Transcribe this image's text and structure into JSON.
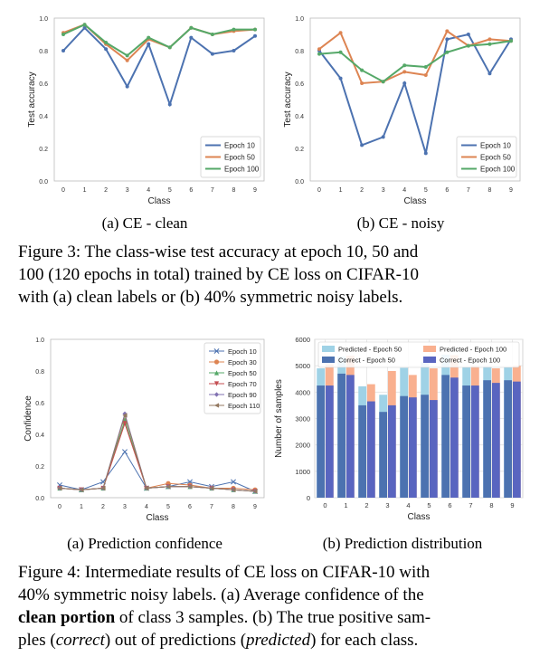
{
  "fig3": {
    "panel_a_caption": "(a) CE - clean",
    "panel_b_caption": "(b) CE - noisy",
    "caption_lines": [
      "Figure 3: The class-wise test accuracy at epoch 10, 50 and",
      "100 (120 epochs in total) trained by CE loss on CIFAR-10",
      "with (a) clean labels or (b) 40% symmetric noisy labels."
    ]
  },
  "fig4": {
    "panel_a_caption": "(a) Prediction confidence",
    "panel_b_caption": "(b) Prediction distribution",
    "caption": {
      "line1": "Figure 4: Intermediate results of CE loss on CIFAR-10 with",
      "line2": "40% symmetric noisy labels. (a) Average confidence of the",
      "line3_bold": "clean portion",
      "line3_rest": " of class 3 samples. (b) The true positive sam-",
      "line4_pre": "ples (",
      "line4_em1": "correct",
      "line4_mid": ") out of predictions (",
      "line4_em2": "predicted",
      "line4_post": ") for each class."
    }
  },
  "colors": {
    "epoch10": "#4c72b0",
    "epoch50": "#dd8452",
    "epoch100": "#55a868",
    "conf10": "#4c72b0",
    "conf30": "#dd8452",
    "conf50": "#55a868",
    "conf70": "#c44e52",
    "conf90": "#8172b2",
    "conf110": "#937860",
    "pred50": "#9fd2e6",
    "pred100": "#f9b08f",
    "corr50": "#4c72b0",
    "corr100": "#5965c0"
  },
  "chart_data": [
    {
      "type": "line",
      "xlabel": "Class",
      "ylabel": "Test accuracy",
      "x": [
        0,
        1,
        2,
        3,
        4,
        5,
        6,
        7,
        8,
        9
      ],
      "xticks": [
        "0",
        "1",
        "2",
        "3",
        "4",
        "5",
        "6",
        "7",
        "8",
        "9"
      ],
      "yticks": [
        "0.0",
        "0.2",
        "0.4",
        "0.6",
        "0.8",
        "1.0"
      ],
      "ylim": [
        0,
        1.0
      ],
      "legend_position": "lower-right",
      "series": [
        {
          "name": "Epoch 10",
          "values": [
            0.8,
            0.94,
            0.81,
            0.58,
            0.84,
            0.47,
            0.88,
            0.78,
            0.8,
            0.89
          ]
        },
        {
          "name": "Epoch 50",
          "values": [
            0.91,
            0.96,
            0.84,
            0.74,
            0.87,
            0.82,
            0.94,
            0.9,
            0.92,
            0.93
          ]
        },
        {
          "name": "Epoch 100",
          "values": [
            0.9,
            0.96,
            0.85,
            0.77,
            0.88,
            0.82,
            0.94,
            0.9,
            0.93,
            0.93
          ]
        }
      ]
    },
    {
      "type": "line",
      "xlabel": "Class",
      "ylabel": "Test accuracy",
      "x": [
        0,
        1,
        2,
        3,
        4,
        5,
        6,
        7,
        8,
        9
      ],
      "xticks": [
        "0",
        "1",
        "2",
        "3",
        "4",
        "5",
        "6",
        "7",
        "8",
        "9"
      ],
      "yticks": [
        "0.0",
        "0.2",
        "0.4",
        "0.6",
        "0.8",
        "1.0"
      ],
      "ylim": [
        0,
        1.0
      ],
      "legend_position": "lower-right",
      "series": [
        {
          "name": "Epoch 10",
          "values": [
            0.8,
            0.63,
            0.22,
            0.27,
            0.6,
            0.17,
            0.87,
            0.9,
            0.66,
            0.87
          ]
        },
        {
          "name": "Epoch 50",
          "values": [
            0.81,
            0.91,
            0.6,
            0.61,
            0.67,
            0.65,
            0.92,
            0.83,
            0.87,
            0.86
          ]
        },
        {
          "name": "Epoch 100",
          "values": [
            0.78,
            0.79,
            0.68,
            0.61,
            0.71,
            0.7,
            0.79,
            0.83,
            0.84,
            0.86
          ]
        }
      ]
    },
    {
      "type": "line",
      "xlabel": "Class",
      "ylabel": "Confidence",
      "x": [
        0,
        1,
        2,
        3,
        4,
        5,
        6,
        7,
        8,
        9
      ],
      "xticks": [
        "0",
        "1",
        "2",
        "3",
        "4",
        "5",
        "6",
        "7",
        "8",
        "9"
      ],
      "yticks": [
        "0.0",
        "0.2",
        "0.4",
        "0.6",
        "0.8",
        "1.0"
      ],
      "ylim": [
        0,
        1.0
      ],
      "legend_position": "top-right",
      "series": [
        {
          "name": "Epoch 10",
          "marker": "x",
          "values": [
            0.08,
            0.05,
            0.1,
            0.29,
            0.06,
            0.07,
            0.1,
            0.07,
            0.1,
            0.04
          ]
        },
        {
          "name": "Epoch 30",
          "marker": "o",
          "values": [
            0.06,
            0.05,
            0.06,
            0.47,
            0.06,
            0.09,
            0.08,
            0.06,
            0.06,
            0.05
          ]
        },
        {
          "name": "Epoch 50",
          "marker": "^",
          "values": [
            0.06,
            0.05,
            0.06,
            0.49,
            0.06,
            0.07,
            0.07,
            0.06,
            0.05,
            0.04
          ]
        },
        {
          "name": "Epoch 70",
          "marker": "v",
          "values": [
            0.06,
            0.05,
            0.06,
            0.47,
            0.06,
            0.07,
            0.07,
            0.06,
            0.05,
            0.04
          ]
        },
        {
          "name": "Epoch 90",
          "marker": "D",
          "values": [
            0.06,
            0.05,
            0.06,
            0.53,
            0.06,
            0.07,
            0.07,
            0.06,
            0.05,
            0.04
          ]
        },
        {
          "name": "Epoch 110",
          "marker": "<",
          "values": [
            0.06,
            0.05,
            0.06,
            0.52,
            0.06,
            0.07,
            0.07,
            0.06,
            0.05,
            0.04
          ]
        }
      ]
    },
    {
      "type": "bar",
      "xlabel": "Class",
      "ylabel": "Number of samples",
      "categories": [
        "0",
        "1",
        "2",
        "3",
        "4",
        "5",
        "6",
        "7",
        "8",
        "9"
      ],
      "yticks": [
        "0",
        "1000",
        "2000",
        "3000",
        "4000",
        "5000",
        "6000"
      ],
      "ylim": [
        0,
        6000
      ],
      "legend_position": "top",
      "grid": true,
      "series": [
        {
          "name": "Predicted - Epoch 50",
          "values": [
            4900,
            5350,
            4220,
            3900,
            4920,
            5150,
            5420,
            4950,
            4980,
            4950
          ]
        },
        {
          "name": "Predicted - Epoch 100",
          "values": [
            5050,
            5380,
            4300,
            4800,
            4650,
            4900,
            5400,
            5000,
            4900,
            5000
          ]
        },
        {
          "name": "Correct - Epoch 50",
          "values": [
            4250,
            4700,
            3500,
            3250,
            3850,
            3900,
            4650,
            4250,
            4450,
            4450
          ]
        },
        {
          "name": "Correct - Epoch 100",
          "values": [
            4250,
            4650,
            3650,
            3500,
            3800,
            3700,
            4550,
            4250,
            4350,
            4400
          ]
        }
      ]
    }
  ]
}
